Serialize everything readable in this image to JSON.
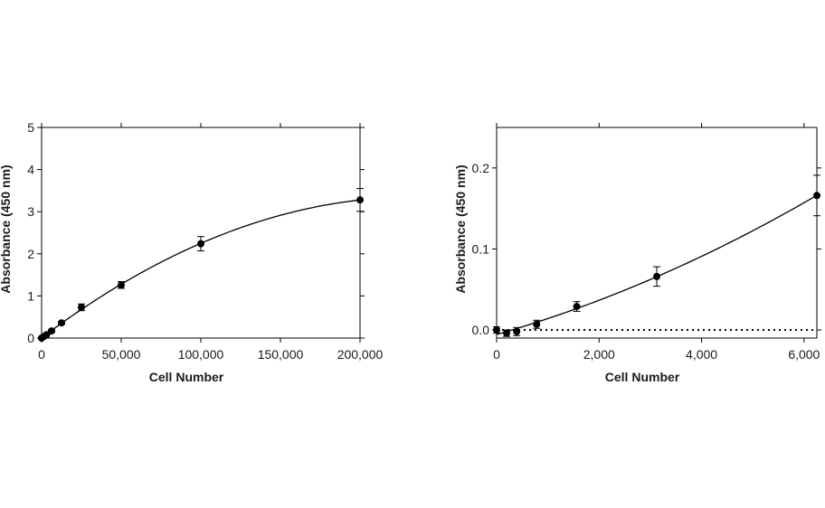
{
  "chart_data": [
    {
      "type": "scatter",
      "title": "",
      "xlabel": "Cell Number",
      "ylabel": "Absorbance (450 nm)",
      "xlim": [
        0,
        200000
      ],
      "ylim": [
        0,
        5
      ],
      "xticks": [
        0,
        50000,
        100000,
        150000,
        200000
      ],
      "xtick_labels": [
        "0",
        "50,000",
        "100,000",
        "150,000",
        "200,000"
      ],
      "yticks": [
        0,
        1,
        2,
        3,
        4,
        5
      ],
      "ytick_labels": [
        "0",
        "1",
        "2",
        "3",
        "4",
        "5"
      ],
      "grid": false,
      "zero_line": false,
      "x": [
        0,
        1563,
        3125,
        6250,
        12500,
        25000,
        50000,
        100000,
        200000
      ],
      "y": [
        0.0,
        0.04,
        0.08,
        0.17,
        0.36,
        0.73,
        1.26,
        2.24,
        3.28
      ],
      "err": [
        0.0,
        0.0,
        0.0,
        0.03,
        0.03,
        0.08,
        0.08,
        0.17,
        0.27
      ],
      "fit": "polynomial"
    },
    {
      "type": "scatter",
      "title": "",
      "xlabel": "Cell Number",
      "ylabel": "Absorbance (450 nm)",
      "xlim": [
        0,
        6250
      ],
      "ylim": [
        -0.01,
        0.25
      ],
      "xticks": [
        0,
        2000,
        4000,
        6000
      ],
      "xtick_labels": [
        "0",
        "2,000",
        "4,000",
        "6,000"
      ],
      "yticks": [
        0.0,
        0.1,
        0.2
      ],
      "ytick_labels": [
        "0.0",
        "0.1",
        "0.2"
      ],
      "grid": false,
      "zero_line": true,
      "x": [
        0,
        195,
        391,
        781,
        1563,
        3125,
        6250
      ],
      "y": [
        0.0,
        -0.004,
        -0.002,
        0.007,
        0.029,
        0.066,
        0.166
      ],
      "err": [
        0.004,
        0.004,
        0.005,
        0.005,
        0.006,
        0.012,
        0.025
      ],
      "fit": "polynomial"
    }
  ]
}
